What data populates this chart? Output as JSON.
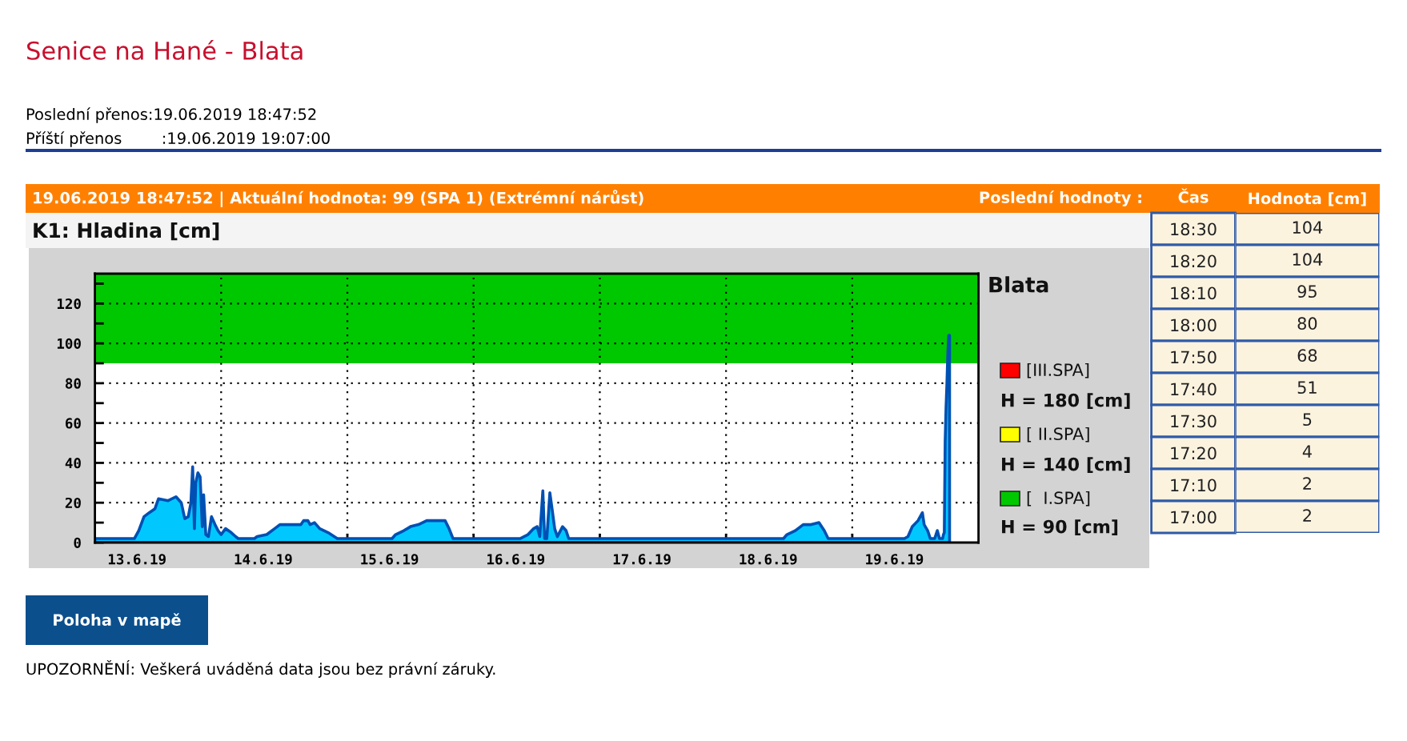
{
  "chart_data": [
    {
      "type": "area",
      "title": "Senice na Hané - Blata",
      "subtitle": "K1: Hladina [cm]",
      "annotations": [
        "Poslední přenos:19.06.2019 18:47:52",
        "Příští přenos        :19.06.2019 19:07:00",
        "19.06.2019 18:47:52 | Aktuální hodnota: 99 (SPA 1) (Extrémní nárůst)",
        "Blata",
        "[III.SPA]",
        "H = 180 [cm]",
        "[ II.SPA]",
        "H = 140 [cm]",
        "[  I.SPA]",
        "H = 90 [cm]",
        "Poloha v mapě",
        "UPOZORNĚNÍ: Veškerá uváděná data jsou bez právní záruky."
      ],
      "x": [
        "2019-06-13T00:00",
        "2019-06-13T07:30",
        "2019-06-13T08:20",
        "2019-06-13T09:20",
        "2019-06-13T10:20",
        "2019-06-13T11:25",
        "2019-06-13T12:05",
        "2019-06-13T13:55",
        "2019-06-13T15:25",
        "2019-06-13T16:25",
        "2019-06-13T17:05",
        "2019-06-13T17:45",
        "2019-06-13T18:15",
        "2019-06-13T18:35",
        "2019-06-13T18:55",
        "2019-06-13T19:10",
        "2019-06-13T19:35",
        "2019-06-13T20:00",
        "2019-06-13T20:25",
        "2019-06-13T20:40",
        "2019-06-13T21:05",
        "2019-06-13T21:35",
        "2019-06-13T22:10",
        "2019-06-13T22:50",
        "2019-06-13T23:25",
        "2019-06-14T00:00",
        "2019-06-14T00:50",
        "2019-06-14T01:55",
        "2019-06-14T02:45",
        "2019-06-14T03:15",
        "2019-06-14T06:20",
        "2019-06-14T06:50",
        "2019-06-14T08:40",
        "2019-06-14T10:10",
        "2019-06-14T11:10",
        "2019-06-14T13:10",
        "2019-06-14T15:10",
        "2019-06-14T15:40",
        "2019-06-14T16:30",
        "2019-06-14T16:55",
        "2019-06-14T17:45",
        "2019-06-14T18:45",
        "2019-06-14T20:20",
        "2019-06-14T21:30",
        "2019-06-14T22:05",
        "2019-06-15T08:30",
        "2019-06-15T09:10",
        "2019-06-15T10:45",
        "2019-06-15T12:00",
        "2019-06-15T13:30",
        "2019-06-15T15:05",
        "2019-06-15T17:05",
        "2019-06-15T18:35",
        "2019-06-15T19:20",
        "2019-06-15T20:05",
        "2019-06-16T08:50",
        "2019-06-16T10:20",
        "2019-06-16T11:25",
        "2019-06-16T12:05",
        "2019-06-16T12:35",
        "2019-06-16T13:10",
        "2019-06-16T13:30",
        "2019-06-16T13:55",
        "2019-06-16T14:30",
        "2019-06-16T14:55",
        "2019-06-16T15:25",
        "2019-06-16T15:55",
        "2019-06-16T16:55",
        "2019-06-16T17:35",
        "2019-06-16T18:05",
        "2019-06-18T10:55",
        "2019-06-18T11:35",
        "2019-06-18T13:10",
        "2019-06-18T14:40",
        "2019-06-18T16:10",
        "2019-06-18T17:40",
        "2019-06-18T18:40",
        "2019-06-18T19:25",
        "2019-06-19T09:55",
        "2019-06-19T10:35",
        "2019-06-19T11:25",
        "2019-06-19T12:30",
        "2019-06-19T13:20",
        "2019-06-19T13:40",
        "2019-06-19T14:20",
        "2019-06-19T14:50",
        "2019-06-19T15:40",
        "2019-06-19T16:10",
        "2019-06-19T16:35",
        "2019-06-19T17:00",
        "2019-06-19T17:10",
        "2019-06-19T17:20",
        "2019-06-19T17:30",
        "2019-06-19T17:40",
        "2019-06-19T17:50",
        "2019-06-19T18:00",
        "2019-06-19T18:10",
        "2019-06-19T18:20",
        "2019-06-19T18:30"
      ],
      "series": [
        {
          "color": "#00c8ff",
          "values": [
            2,
            2,
            6,
            13,
            15,
            17,
            22,
            21,
            23,
            20,
            12,
            13,
            20,
            38,
            7,
            30,
            35,
            33,
            8,
            24,
            4,
            3,
            13,
            9,
            6,
            4,
            7,
            5,
            3,
            2,
            2,
            3,
            4,
            7,
            9,
            9,
            9,
            11,
            11,
            9,
            10,
            7,
            5,
            3,
            2,
            2,
            4,
            6,
            8,
            9,
            11,
            11,
            11,
            7,
            2,
            2,
            4,
            7,
            8,
            3,
            26,
            2,
            2,
            25,
            17,
            7,
            3,
            8,
            6,
            2,
            2,
            4,
            6,
            9,
            9,
            10,
            6,
            2,
            2,
            3,
            8,
            11,
            15,
            9,
            6,
            2,
            2,
            6,
            2,
            2,
            2,
            4,
            5,
            51,
            68,
            80,
            95,
            104,
            104
          ]
        }
      ],
      "xlim": [
        "2019-06-13",
        "2019-06-20"
      ],
      "xticks": [
        {
          "value": "2019-06-13T08:00",
          "label": "13.6.19"
        },
        {
          "value": "2019-06-14T08:00",
          "label": "14.6.19"
        },
        {
          "value": "2019-06-15T08:00",
          "label": "15.6.19"
        },
        {
          "value": "2019-06-16T08:00",
          "label": "16.6.19"
        },
        {
          "value": "2019-06-17T08:00",
          "label": "17.6.19"
        },
        {
          "value": "2019-06-18T08:00",
          "label": "18.6.19"
        },
        {
          "value": "2019-06-19T08:00",
          "label": "19.6.19"
        },
        {
          "value": "2019-06-14",
          "label": null
        },
        {
          "value": "2019-06-15",
          "label": null
        },
        {
          "value": "2019-06-16",
          "label": null
        },
        {
          "value": "2019-06-17",
          "label": null
        },
        {
          "value": "2019-06-18",
          "label": null
        },
        {
          "value": "2019-06-19",
          "label": null
        }
      ],
      "ylim": [
        0,
        135
      ],
      "yticks": [
        0,
        20,
        40,
        60,
        80,
        100,
        120
      ],
      "bands": [
        {
          "axis": "y",
          "from": 90,
          "to": 135,
          "color": "#00c800"
        }
      ],
      "grid": true
    },
    {
      "type": "heatmap",
      "title": "Poslední hodnoty :",
      "ylabel": "Čas",
      "categories": [
        "Hodnota [cm]"
      ],
      "y_categories": [
        "18:30",
        "18:20",
        "18:10",
        "18:00",
        "17:50",
        "17:40",
        "17:30",
        "17:20",
        "17:10",
        "17:00"
      ],
      "cells": [
        [
          104
        ],
        [
          104
        ],
        [
          95
        ],
        [
          80
        ],
        [
          68
        ],
        [
          51
        ],
        [
          5
        ],
        [
          4
        ],
        [
          2
        ],
        [
          2
        ]
      ],
      "data_labels": true
    }
  ]
}
